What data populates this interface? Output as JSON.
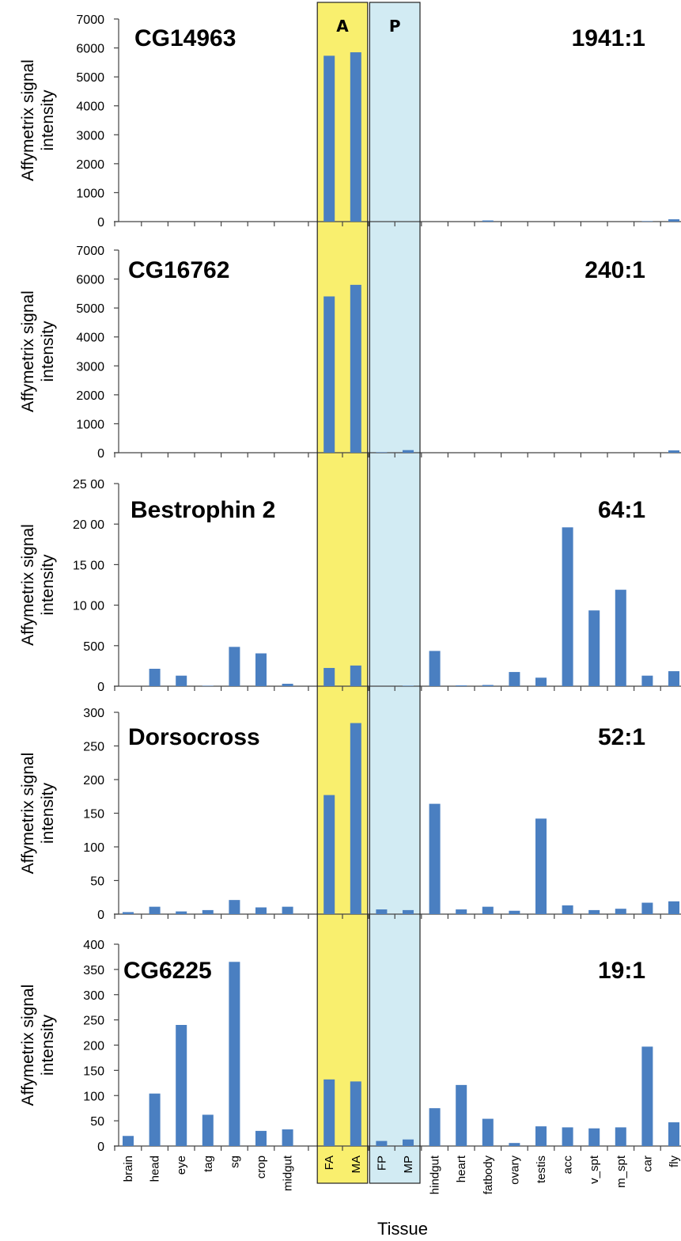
{
  "figure": {
    "xlabel": "Tissue",
    "bands": [
      {
        "label": "A",
        "color": "#f9ef6e",
        "categories": [
          "FA",
          "MA"
        ]
      },
      {
        "label": "P",
        "color": "#d2ebf3",
        "categories": [
          "FP",
          "MP"
        ]
      }
    ],
    "bar_color": "#4a7fc1"
  },
  "chart_data": [
    {
      "type": "bar",
      "title": "CG14963",
      "annotation": "1941:1",
      "ylabel": "Affymetrix signal intensity",
      "ylim": [
        0,
        7000
      ],
      "yticks": [
        0,
        1000,
        2000,
        3000,
        4000,
        5000,
        6000,
        7000
      ],
      "ytick_labels": [
        "0",
        "1000",
        "2000",
        "3000",
        "4000",
        "5000",
        "6000",
        "7000"
      ],
      "categories": [
        "brain",
        "head",
        "eye",
        "tag",
        "sg",
        "crop",
        "midgut",
        "FA",
        "MA",
        "FP",
        "MP",
        "hindgut",
        "heart",
        "fatbody",
        "ovary",
        "testis",
        "acc",
        "v_spt",
        "m_spt",
        "car",
        "fly"
      ],
      "values": [
        0,
        0,
        0,
        0,
        0,
        0,
        0,
        5730,
        5850,
        0,
        0,
        0,
        0,
        40,
        0,
        0,
        0,
        0,
        0,
        15,
        80
      ]
    },
    {
      "type": "bar",
      "title": "CG16762",
      "annotation": "240:1",
      "ylabel": "Affymetrix signal intensity",
      "ylim": [
        0,
        7000
      ],
      "yticks": [
        0,
        1000,
        2000,
        3000,
        4000,
        5000,
        6000,
        7000
      ],
      "ytick_labels": [
        "0",
        "1000",
        "2000",
        "3000",
        "4000",
        "5000",
        "6000",
        "7000"
      ],
      "categories": [
        "brain",
        "head",
        "eye",
        "tag",
        "sg",
        "crop",
        "midgut",
        "FA",
        "MA",
        "FP",
        "MP",
        "hindgut",
        "heart",
        "fatbody",
        "ovary",
        "testis",
        "acc",
        "v_spt",
        "m_spt",
        "car",
        "fly"
      ],
      "values": [
        0,
        0,
        0,
        0,
        0,
        0,
        0,
        5400,
        5800,
        15,
        90,
        0,
        0,
        0,
        0,
        0,
        0,
        0,
        0,
        0,
        80
      ]
    },
    {
      "type": "bar",
      "title": "Bestrophin 2",
      "annotation": "64:1",
      "ylabel": "Affymetrix signal intensity",
      "ylim": [
        0,
        2500
      ],
      "yticks": [
        0,
        500,
        1000,
        1500,
        2000,
        2500
      ],
      "ytick_labels": [
        "0",
        "500",
        "10 00",
        "15 00",
        "20 00",
        "25 00"
      ],
      "categories": [
        "brain",
        "head",
        "eye",
        "tag",
        "sg",
        "crop",
        "midgut",
        "FA",
        "MA",
        "FP",
        "MP",
        "hindgut",
        "heart",
        "fatbody",
        "ovary",
        "testis",
        "acc",
        "v_spt",
        "m_spt",
        "car",
        "fly"
      ],
      "values": [
        0,
        215,
        130,
        5,
        485,
        405,
        30,
        225,
        255,
        0,
        5,
        435,
        10,
        15,
        175,
        105,
        1960,
        935,
        1190,
        130,
        185
      ]
    },
    {
      "type": "bar",
      "title": "Dorsocross",
      "annotation": "52:1",
      "ylabel": "Affymetrix signal intensity",
      "ylim": [
        0,
        300
      ],
      "yticks": [
        0,
        50,
        100,
        150,
        200,
        250,
        300
      ],
      "ytick_labels": [
        "0",
        "50",
        "100",
        "150",
        "200",
        "250",
        "300"
      ],
      "categories": [
        "brain",
        "head",
        "eye",
        "tag",
        "sg",
        "crop",
        "midgut",
        "FA",
        "MA",
        "FP",
        "MP",
        "hindgut",
        "heart",
        "fatbody",
        "ovary",
        "testis",
        "acc",
        "v_spt",
        "m_spt",
        "car",
        "fly"
      ],
      "values": [
        3,
        11,
        4,
        6,
        21,
        10,
        11,
        177,
        284,
        7,
        6,
        164,
        7,
        11,
        5,
        142,
        13,
        6,
        8,
        17,
        19
      ]
    },
    {
      "type": "bar",
      "title": "CG6225",
      "annotation": "19:1",
      "ylabel": "Affymetrix signal intensity",
      "ylim": [
        0,
        400
      ],
      "yticks": [
        0,
        50,
        100,
        150,
        200,
        250,
        300,
        350,
        400
      ],
      "ytick_labels": [
        "0",
        "50",
        "100",
        "150",
        "200",
        "250",
        "300",
        "350",
        "400"
      ],
      "categories": [
        "brain",
        "head",
        "eye",
        "tag",
        "sg",
        "crop",
        "midgut",
        "FA",
        "MA",
        "FP",
        "MP",
        "hindgut",
        "heart",
        "fatbody",
        "ovary",
        "testis",
        "acc",
        "v_spt",
        "m_spt",
        "car",
        "fly"
      ],
      "values": [
        20,
        104,
        240,
        62,
        365,
        30,
        33,
        132,
        128,
        10,
        13,
        75,
        121,
        54,
        6,
        39,
        37,
        35,
        37,
        197,
        47
      ]
    }
  ]
}
